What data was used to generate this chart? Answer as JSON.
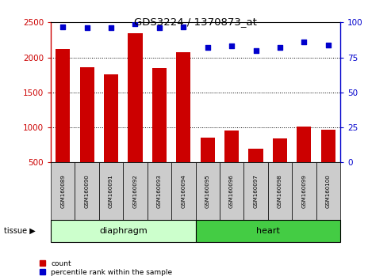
{
  "title": "GDS3224 / 1370873_at",
  "samples": [
    "GSM160089",
    "GSM160090",
    "GSM160091",
    "GSM160092",
    "GSM160093",
    "GSM160094",
    "GSM160095",
    "GSM160096",
    "GSM160097",
    "GSM160098",
    "GSM160099",
    "GSM160100"
  ],
  "counts": [
    2120,
    1860,
    1760,
    2350,
    1850,
    2070,
    850,
    950,
    700,
    840,
    1010,
    970
  ],
  "percentiles": [
    97,
    96,
    96,
    99,
    96,
    97,
    82,
    83,
    80,
    82,
    86,
    84
  ],
  "ylim_left": [
    500,
    2500
  ],
  "ylim_right": [
    0,
    100
  ],
  "yticks_left": [
    500,
    1000,
    1500,
    2000,
    2500
  ],
  "yticks_right": [
    0,
    25,
    50,
    75,
    100
  ],
  "bar_color": "#cc0000",
  "dot_color": "#0000cc",
  "tissue_groups": [
    {
      "label": "diaphragm",
      "indices": [
        0,
        1,
        2,
        3,
        4,
        5
      ],
      "color": "#ccffcc"
    },
    {
      "label": "heart",
      "indices": [
        6,
        7,
        8,
        9,
        10,
        11
      ],
      "color": "#44cc44"
    }
  ],
  "label_bg": "#cccccc",
  "left_axis_color": "#cc0000",
  "right_axis_color": "#0000cc",
  "grid_yticks": [
    1000,
    1500,
    2000,
    2500
  ]
}
